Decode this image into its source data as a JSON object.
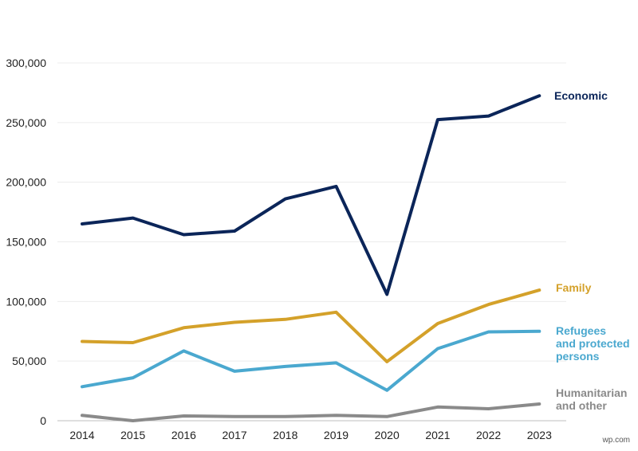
{
  "chart_data": {
    "type": "line",
    "title": "",
    "xlabel": "",
    "ylabel": "",
    "x": [
      "2014",
      "2015",
      "2016",
      "2017",
      "2018",
      "2019",
      "2020",
      "2021",
      "2022",
      "2023"
    ],
    "ylim": [
      0,
      300000
    ],
    "yticks": [
      "0",
      "50,000",
      "100,000",
      "150,000",
      "200,000",
      "250,000",
      "300,000"
    ],
    "grid": true,
    "legend": "direct labels at line ends (right)",
    "series": [
      {
        "name": "Economic",
        "color": "#0b2559",
        "values": [
          165000,
          170000,
          156000,
          159000,
          186000,
          196500,
          106000,
          252500,
          255500,
          272500
        ]
      },
      {
        "name": "Family",
        "color": "#d4a12a",
        "values": [
          66500,
          65500,
          78000,
          82500,
          85000,
          91000,
          49500,
          81500,
          97500,
          109500
        ]
      },
      {
        "name": "Refugees and protected persons",
        "color": "#4aa8cf",
        "values": [
          28500,
          36000,
          58500,
          41500,
          45500,
          48500,
          25500,
          60500,
          74500,
          75000
        ]
      },
      {
        "name": "Humanitarian and other",
        "color": "#8a8a8a",
        "values": [
          4500,
          0,
          4000,
          3500,
          3500,
          4500,
          3500,
          11500,
          10000,
          14000
        ]
      }
    ],
    "series_labels": [
      {
        "lines": [
          "Economic"
        ]
      },
      {
        "lines": [
          "Family"
        ]
      },
      {
        "lines": [
          "Refugees",
          "and protected",
          "persons"
        ]
      },
      {
        "lines": [
          "Humanitarian",
          "and other"
        ]
      }
    ]
  },
  "watermark": "wp.com"
}
